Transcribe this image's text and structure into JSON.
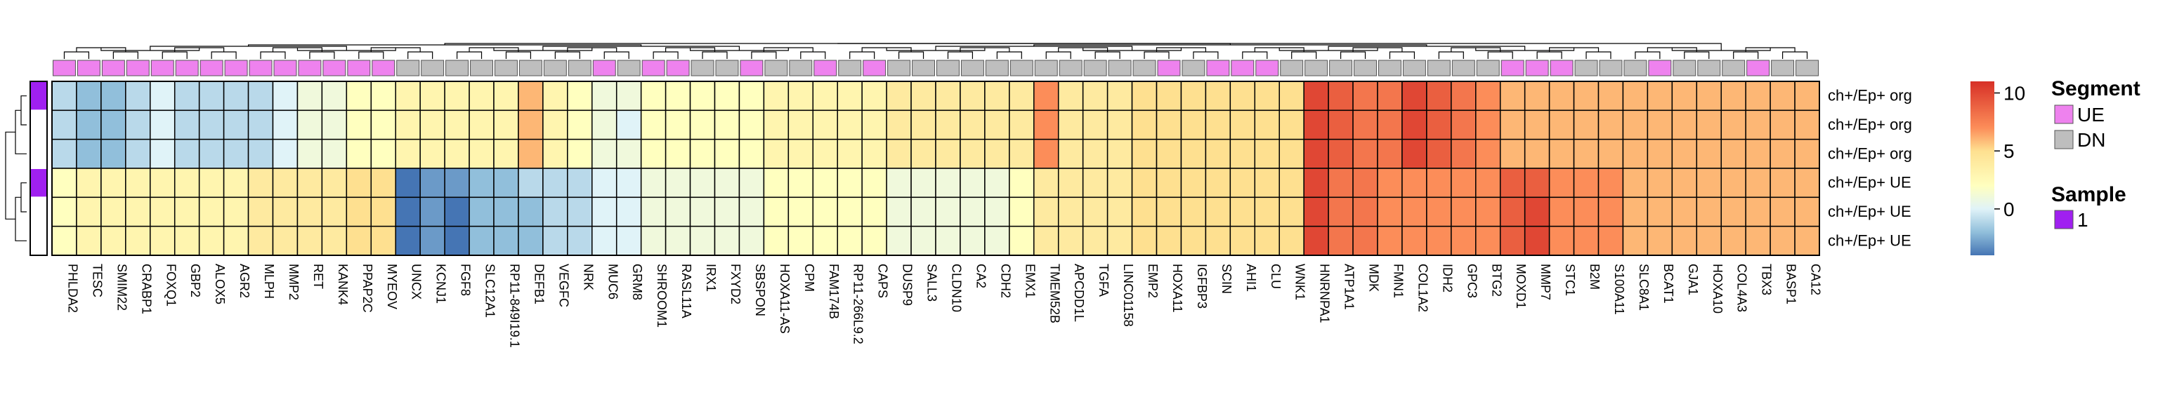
{
  "chart_data": {
    "type": "heatmap",
    "genes": [
      "PHLDA2",
      "TESC",
      "SMIM22",
      "CRABP1",
      "FOXQ1",
      "GBP2",
      "ALOX5",
      "AGR2",
      "MLPH",
      "MMP2",
      "RET",
      "KANK4",
      "PPAP2C",
      "MYEOV",
      "UNCX",
      "KCNJ1",
      "FGF8",
      "SLC12A1",
      "RP11-849I19.1",
      "DEFB1",
      "VEGFC",
      "NRK",
      "MUC6",
      "GRM8",
      "SHROOM1",
      "RASL11A",
      "IRX1",
      "FXYD2",
      "SBSPON",
      "HOXA11-AS",
      "CPM",
      "FAM174B",
      "RP11-266L9.2",
      "CAPS",
      "DUSP9",
      "SALL3",
      "CLDN10",
      "CA2",
      "CDH2",
      "EMX1",
      "TMEM52B",
      "APCDD1L",
      "TGFA",
      "LINC01158",
      "EMP2",
      "HOXA11",
      "IGFBP3",
      "SCIN",
      "AHI1",
      "CLU",
      "WNK1",
      "HNRNPA1",
      "ATP1A1",
      "MDK",
      "FMN1",
      "COL1A2",
      "IDH2",
      "GPC3",
      "BTG2",
      "MOXD1",
      "MMP7",
      "STC1",
      "B2M",
      "S100A11",
      "SLC8A1",
      "BCAT1",
      "GJA1",
      "HOXA10",
      "COL4A3",
      "TBX3",
      "BASP1",
      "CA12"
    ],
    "segment": [
      "UE",
      "UE",
      "UE",
      "UE",
      "UE",
      "UE",
      "UE",
      "UE",
      "UE",
      "UE",
      "UE",
      "UE",
      "UE",
      "UE",
      "DN",
      "DN",
      "DN",
      "DN",
      "DN",
      "DN",
      "DN",
      "DN",
      "UE",
      "DN",
      "UE",
      "UE",
      "DN",
      "DN",
      "UE",
      "DN",
      "DN",
      "UE",
      "DN",
      "UE",
      "DN",
      "DN",
      "DN",
      "DN",
      "DN",
      "DN",
      "DN",
      "DN",
      "DN",
      "DN",
      "DN",
      "UE",
      "DN",
      "UE",
      "UE",
      "UE",
      "DN",
      "DN",
      "DN",
      "DN",
      "DN",
      "DN",
      "DN",
      "DN",
      "DN",
      "UE",
      "UE",
      "UE",
      "DN",
      "DN",
      "DN",
      "UE",
      "DN",
      "DN",
      "DN",
      "UE",
      "DN",
      "DN"
    ],
    "rows": [
      "ch+/Ep+ org",
      "ch+/Ep+ org",
      "ch+/Ep+ org",
      "ch+/Ep+ UE",
      "ch+/Ep+ UE",
      "ch+/Ep+ UE"
    ],
    "sample": [
      "1",
      "1",
      "1",
      "1",
      "1",
      "1"
    ],
    "values": [
      [
        -1,
        -2,
        -2,
        -1,
        0,
        -1,
        -1,
        -1,
        -1,
        0,
        1,
        1,
        2,
        2,
        3,
        3,
        3,
        3,
        3,
        6,
        3,
        2,
        1,
        1,
        2,
        2,
        2,
        2,
        2,
        3,
        3,
        3,
        3,
        3,
        4,
        4,
        4,
        4,
        4,
        4,
        7,
        4,
        4,
        4,
        5,
        5,
        5,
        5,
        5,
        5,
        5,
        10,
        9,
        8,
        8,
        10,
        9,
        8,
        7,
        6,
        6,
        6,
        6,
        6,
        6,
        6,
        6,
        6,
        6,
        6,
        6,
        6
      ],
      [
        -1,
        -2,
        -2,
        -1,
        0,
        -1,
        -1,
        -1,
        -1,
        0,
        1,
        1,
        2,
        2,
        3,
        3,
        3,
        3,
        3,
        6,
        3,
        2,
        1,
        0,
        2,
        2,
        2,
        2,
        2,
        3,
        3,
        3,
        3,
        3,
        4,
        4,
        4,
        4,
        4,
        4,
        7,
        4,
        4,
        4,
        5,
        5,
        5,
        5,
        5,
        5,
        5,
        10,
        9,
        8,
        8,
        10,
        9,
        8,
        7,
        6,
        6,
        6,
        6,
        6,
        6,
        6,
        6,
        6,
        6,
        6,
        6,
        6
      ],
      [
        -1,
        -2,
        -2,
        -1,
        0,
        -1,
        -1,
        -1,
        -1,
        0,
        1,
        1,
        2,
        2,
        3,
        3,
        3,
        3,
        3,
        6,
        3,
        2,
        1,
        1,
        2,
        2,
        2,
        2,
        2,
        3,
        3,
        3,
        3,
        3,
        4,
        4,
        4,
        4,
        4,
        4,
        7,
        4,
        4,
        4,
        5,
        5,
        5,
        5,
        5,
        5,
        5,
        10,
        9,
        8,
        8,
        10,
        9,
        8,
        7,
        6,
        6,
        6,
        6,
        6,
        6,
        6,
        6,
        6,
        6,
        6,
        6,
        6
      ],
      [
        2,
        3,
        3,
        3,
        3,
        3,
        3,
        3,
        4,
        4,
        4,
        4,
        5,
        5,
        -4,
        -3,
        -3,
        -2,
        -2,
        -1,
        -1,
        -1,
        0,
        0,
        1,
        1,
        1,
        1,
        1,
        2,
        2,
        2,
        2,
        2,
        1,
        1,
        1,
        1,
        1,
        2,
        4,
        4,
        4,
        4,
        5,
        5,
        5,
        5,
        5,
        5,
        5,
        10,
        8,
        8,
        7,
        7,
        7,
        7,
        7,
        9,
        9,
        7,
        7,
        7,
        6,
        6,
        6,
        6,
        6,
        6,
        6,
        6
      ],
      [
        2,
        3,
        3,
        3,
        3,
        3,
        3,
        3,
        4,
        4,
        4,
        4,
        5,
        5,
        -4,
        -3,
        -4,
        -2,
        -2,
        -2,
        -1,
        -1,
        0,
        0,
        1,
        1,
        1,
        1,
        1,
        2,
        2,
        2,
        2,
        2,
        1,
        1,
        1,
        1,
        1,
        2,
        4,
        4,
        4,
        4,
        5,
        5,
        5,
        5,
        5,
        5,
        5,
        10,
        8,
        8,
        7,
        7,
        7,
        7,
        7,
        9,
        10,
        7,
        7,
        7,
        6,
        6,
        6,
        6,
        6,
        6,
        6,
        6
      ],
      [
        2,
        3,
        3,
        3,
        3,
        3,
        3,
        3,
        4,
        4,
        4,
        4,
        5,
        5,
        -4,
        -3,
        -4,
        -2,
        -2,
        -2,
        -1,
        -1,
        0,
        0,
        1,
        1,
        1,
        1,
        1,
        2,
        2,
        2,
        2,
        2,
        1,
        1,
        1,
        1,
        1,
        2,
        4,
        4,
        4,
        4,
        5,
        5,
        5,
        5,
        5,
        5,
        5,
        10,
        8,
        8,
        7,
        7,
        7,
        7,
        7,
        9,
        10,
        7,
        7,
        7,
        6,
        6,
        6,
        6,
        6,
        6,
        6,
        6
      ]
    ],
    "color_scale": {
      "min": -4,
      "max": 11,
      "stops": [
        [
          -4,
          "#4575b4"
        ],
        [
          -2,
          "#91bfdb"
        ],
        [
          0,
          "#e0f3f8"
        ],
        [
          2,
          "#ffffbf"
        ],
        [
          5,
          "#fee090"
        ],
        [
          7,
          "#fc8d59"
        ],
        [
          11,
          "#d73027"
        ]
      ],
      "ticks": [
        0,
        5,
        10
      ]
    },
    "legends": {
      "segment": {
        "title": "Segment",
        "items": [
          {
            "label": "UE",
            "color": "#ee82ee"
          },
          {
            "label": "DN",
            "color": "#bebebe"
          }
        ]
      },
      "sample": {
        "title": "Sample",
        "items": [
          {
            "label": "1",
            "color": "#a020f0"
          }
        ]
      }
    }
  }
}
